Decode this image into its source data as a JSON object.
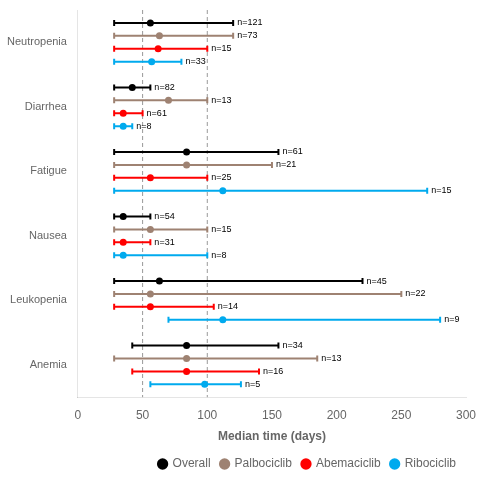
{
  "chart_data": {
    "type": "interval",
    "orientation": "horizontal",
    "categories": [
      "Neutropenia",
      "Diarrhea",
      "Fatigue",
      "Nausea",
      "Leukopenia",
      "Anemia"
    ],
    "xlabel": "Median time (days)",
    "xlim": [
      0,
      300
    ],
    "xticks": [
      0,
      50,
      100,
      150,
      200,
      250,
      300
    ],
    "grid": false,
    "legend": "lower right",
    "vlines": [
      50,
      100
    ],
    "series": [
      {
        "name": "Overall",
        "color": "#000000",
        "values": [
          56,
          42,
          84,
          35,
          63,
          84
        ],
        "q1": [
          28,
          28,
          28,
          28,
          28,
          42
        ],
        "q3": [
          120,
          56,
          155,
          56,
          220,
          155
        ],
        "n_labels": [
          "n=121",
          "n=82",
          "n=61",
          "n=54",
          "n=45",
          "n=34"
        ]
      },
      {
        "name": "Palbociclib",
        "color": "#9E8272",
        "values": [
          63,
          70,
          84,
          56,
          56,
          84
        ],
        "q1": [
          28,
          28,
          28,
          28,
          28,
          28
        ],
        "q3": [
          120,
          100,
          150,
          100,
          250,
          185
        ],
        "n_labels": [
          "n=73",
          "n=13",
          "n=21",
          "n=15",
          "n=22",
          "n=13"
        ]
      },
      {
        "name": "Abemaciclib",
        "color": "#FF0000",
        "values": [
          62,
          35,
          56,
          35,
          56,
          84
        ],
        "q1": [
          28,
          28,
          28,
          28,
          28,
          42
        ],
        "q3": [
          100,
          50,
          100,
          56,
          105,
          140
        ],
        "n_labels": [
          "n=15",
          "n=61",
          "n=25",
          "n=31",
          "n=14",
          "n=16"
        ]
      },
      {
        "name": "Ribociclib",
        "color": "#00AAEE",
        "values": [
          57,
          35,
          112,
          35,
          112,
          98
        ],
        "q1": [
          28,
          28,
          28,
          28,
          70,
          56
        ],
        "q3": [
          80,
          42,
          270,
          100,
          280,
          126
        ],
        "n_labels": [
          "n=33",
          "n=8",
          "n=15",
          "n=8",
          "n=9",
          "n=5"
        ]
      }
    ]
  }
}
